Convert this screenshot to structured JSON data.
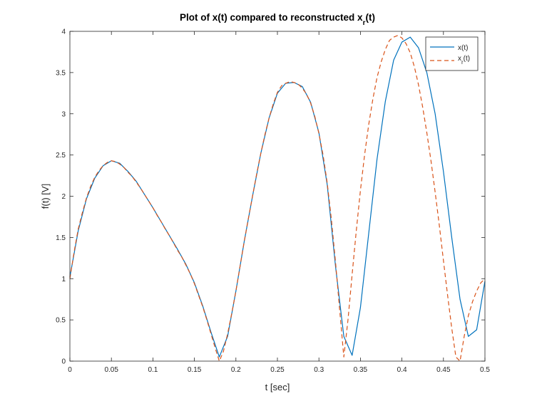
{
  "chart_data": {
    "type": "line",
    "title": "Plot of x(t) compared to reconstructed x",
    "title_subscript": "r",
    "title_suffix": "(t)",
    "xlabel": "t [sec]",
    "ylabel": "f(t) [V]",
    "xlim": [
      0,
      0.5
    ],
    "ylim": [
      0,
      4
    ],
    "xticks": [
      0,
      0.05,
      0.1,
      0.15,
      0.2,
      0.25,
      0.3,
      0.35,
      0.4,
      0.45,
      0.5
    ],
    "xtick_labels": [
      "0",
      "0.05",
      "0.1",
      "0.15",
      "0.2",
      "0.25",
      "0.3",
      "0.35",
      "0.4",
      "0.45",
      "0.5"
    ],
    "yticks": [
      0,
      0.5,
      1,
      1.5,
      2,
      2.5,
      3,
      3.5,
      4
    ],
    "ytick_labels": [
      "0",
      "0.5",
      "1",
      "1.5",
      "2",
      "2.5",
      "3",
      "3.5",
      "4"
    ],
    "grid": false,
    "legend_position": "top-right",
    "series": [
      {
        "name": "x(t)",
        "name_main": "x(t)",
        "color": "#0072BD",
        "style": "solid",
        "x": [
          0,
          0.01,
          0.02,
          0.03,
          0.04,
          0.05,
          0.06,
          0.07,
          0.08,
          0.09,
          0.1,
          0.11,
          0.12,
          0.13,
          0.14,
          0.15,
          0.16,
          0.17,
          0.18,
          0.19,
          0.2,
          0.21,
          0.22,
          0.23,
          0.24,
          0.25,
          0.26,
          0.27,
          0.28,
          0.29,
          0.3,
          0.31,
          0.32,
          0.33,
          0.34,
          0.35,
          0.36,
          0.37,
          0.38,
          0.39,
          0.4,
          0.41,
          0.42,
          0.43,
          0.44,
          0.45,
          0.46,
          0.47,
          0.48,
          0.49,
          0.5
        ],
        "y": [
          1.02,
          1.58,
          1.97,
          2.22,
          2.37,
          2.43,
          2.4,
          2.3,
          2.18,
          2.02,
          1.86,
          1.69,
          1.52,
          1.35,
          1.17,
          0.95,
          0.67,
          0.35,
          0.05,
          0.3,
          0.85,
          1.45,
          2.0,
          2.52,
          2.95,
          3.25,
          3.37,
          3.38,
          3.33,
          3.14,
          2.77,
          2.14,
          1.15,
          0.3,
          0.07,
          0.65,
          1.55,
          2.45,
          3.15,
          3.65,
          3.87,
          3.93,
          3.8,
          3.5,
          3.0,
          2.3,
          1.5,
          0.75,
          0.3,
          0.38,
          0.97
        ]
      },
      {
        "name": "x_r(t)",
        "name_main": "x",
        "name_sub": "r",
        "name_suffix": "(t)",
        "color": "#D95319",
        "style": "dashed",
        "x": [
          0,
          0.005,
          0.01,
          0.015,
          0.02,
          0.025,
          0.03,
          0.035,
          0.04,
          0.045,
          0.05,
          0.055,
          0.06,
          0.065,
          0.07,
          0.075,
          0.08,
          0.085,
          0.09,
          0.095,
          0.1,
          0.105,
          0.11,
          0.115,
          0.12,
          0.125,
          0.13,
          0.135,
          0.14,
          0.145,
          0.15,
          0.155,
          0.16,
          0.165,
          0.17,
          0.175,
          0.18,
          0.185,
          0.19,
          0.195,
          0.2,
          0.205,
          0.21,
          0.215,
          0.22,
          0.225,
          0.23,
          0.235,
          0.24,
          0.245,
          0.25,
          0.255,
          0.26,
          0.265,
          0.27,
          0.275,
          0.28,
          0.285,
          0.29,
          0.295,
          0.3,
          0.305,
          0.31,
          0.315,
          0.32,
          0.325,
          0.33,
          0.335,
          0.34,
          0.345,
          0.35,
          0.355,
          0.36,
          0.365,
          0.37,
          0.375,
          0.38,
          0.385,
          0.39,
          0.395,
          0.4,
          0.405,
          0.41,
          0.415,
          0.42,
          0.425,
          0.43,
          0.435,
          0.44,
          0.445,
          0.45,
          0.455,
          0.46,
          0.465,
          0.47,
          0.475,
          0.48,
          0.485,
          0.49,
          0.495,
          0.5
        ],
        "y": [
          1.0,
          1.32,
          1.6,
          1.8,
          1.98,
          2.12,
          2.23,
          2.31,
          2.37,
          2.41,
          2.43,
          2.42,
          2.39,
          2.35,
          2.29,
          2.24,
          2.17,
          2.1,
          2.02,
          1.94,
          1.86,
          1.77,
          1.69,
          1.6,
          1.52,
          1.43,
          1.34,
          1.26,
          1.16,
          1.06,
          0.94,
          0.8,
          0.66,
          0.5,
          0.33,
          0.16,
          0.0,
          0.12,
          0.33,
          0.58,
          0.85,
          1.15,
          1.45,
          1.73,
          2.0,
          2.27,
          2.52,
          2.75,
          2.95,
          3.12,
          3.26,
          3.34,
          3.37,
          3.39,
          3.38,
          3.36,
          3.31,
          3.24,
          3.13,
          2.97,
          2.76,
          2.5,
          2.16,
          1.72,
          1.2,
          0.62,
          0.05,
          0.5,
          1.05,
          1.58,
          2.07,
          2.5,
          2.87,
          3.18,
          3.44,
          3.63,
          3.78,
          3.89,
          3.93,
          3.95,
          3.92,
          3.85,
          3.74,
          3.57,
          3.35,
          3.08,
          2.77,
          2.43,
          2.05,
          1.65,
          1.22,
          0.8,
          0.4,
          0.05,
          0.0,
          0.3,
          0.55,
          0.72,
          0.85,
          0.95,
          1.0
        ]
      }
    ]
  }
}
